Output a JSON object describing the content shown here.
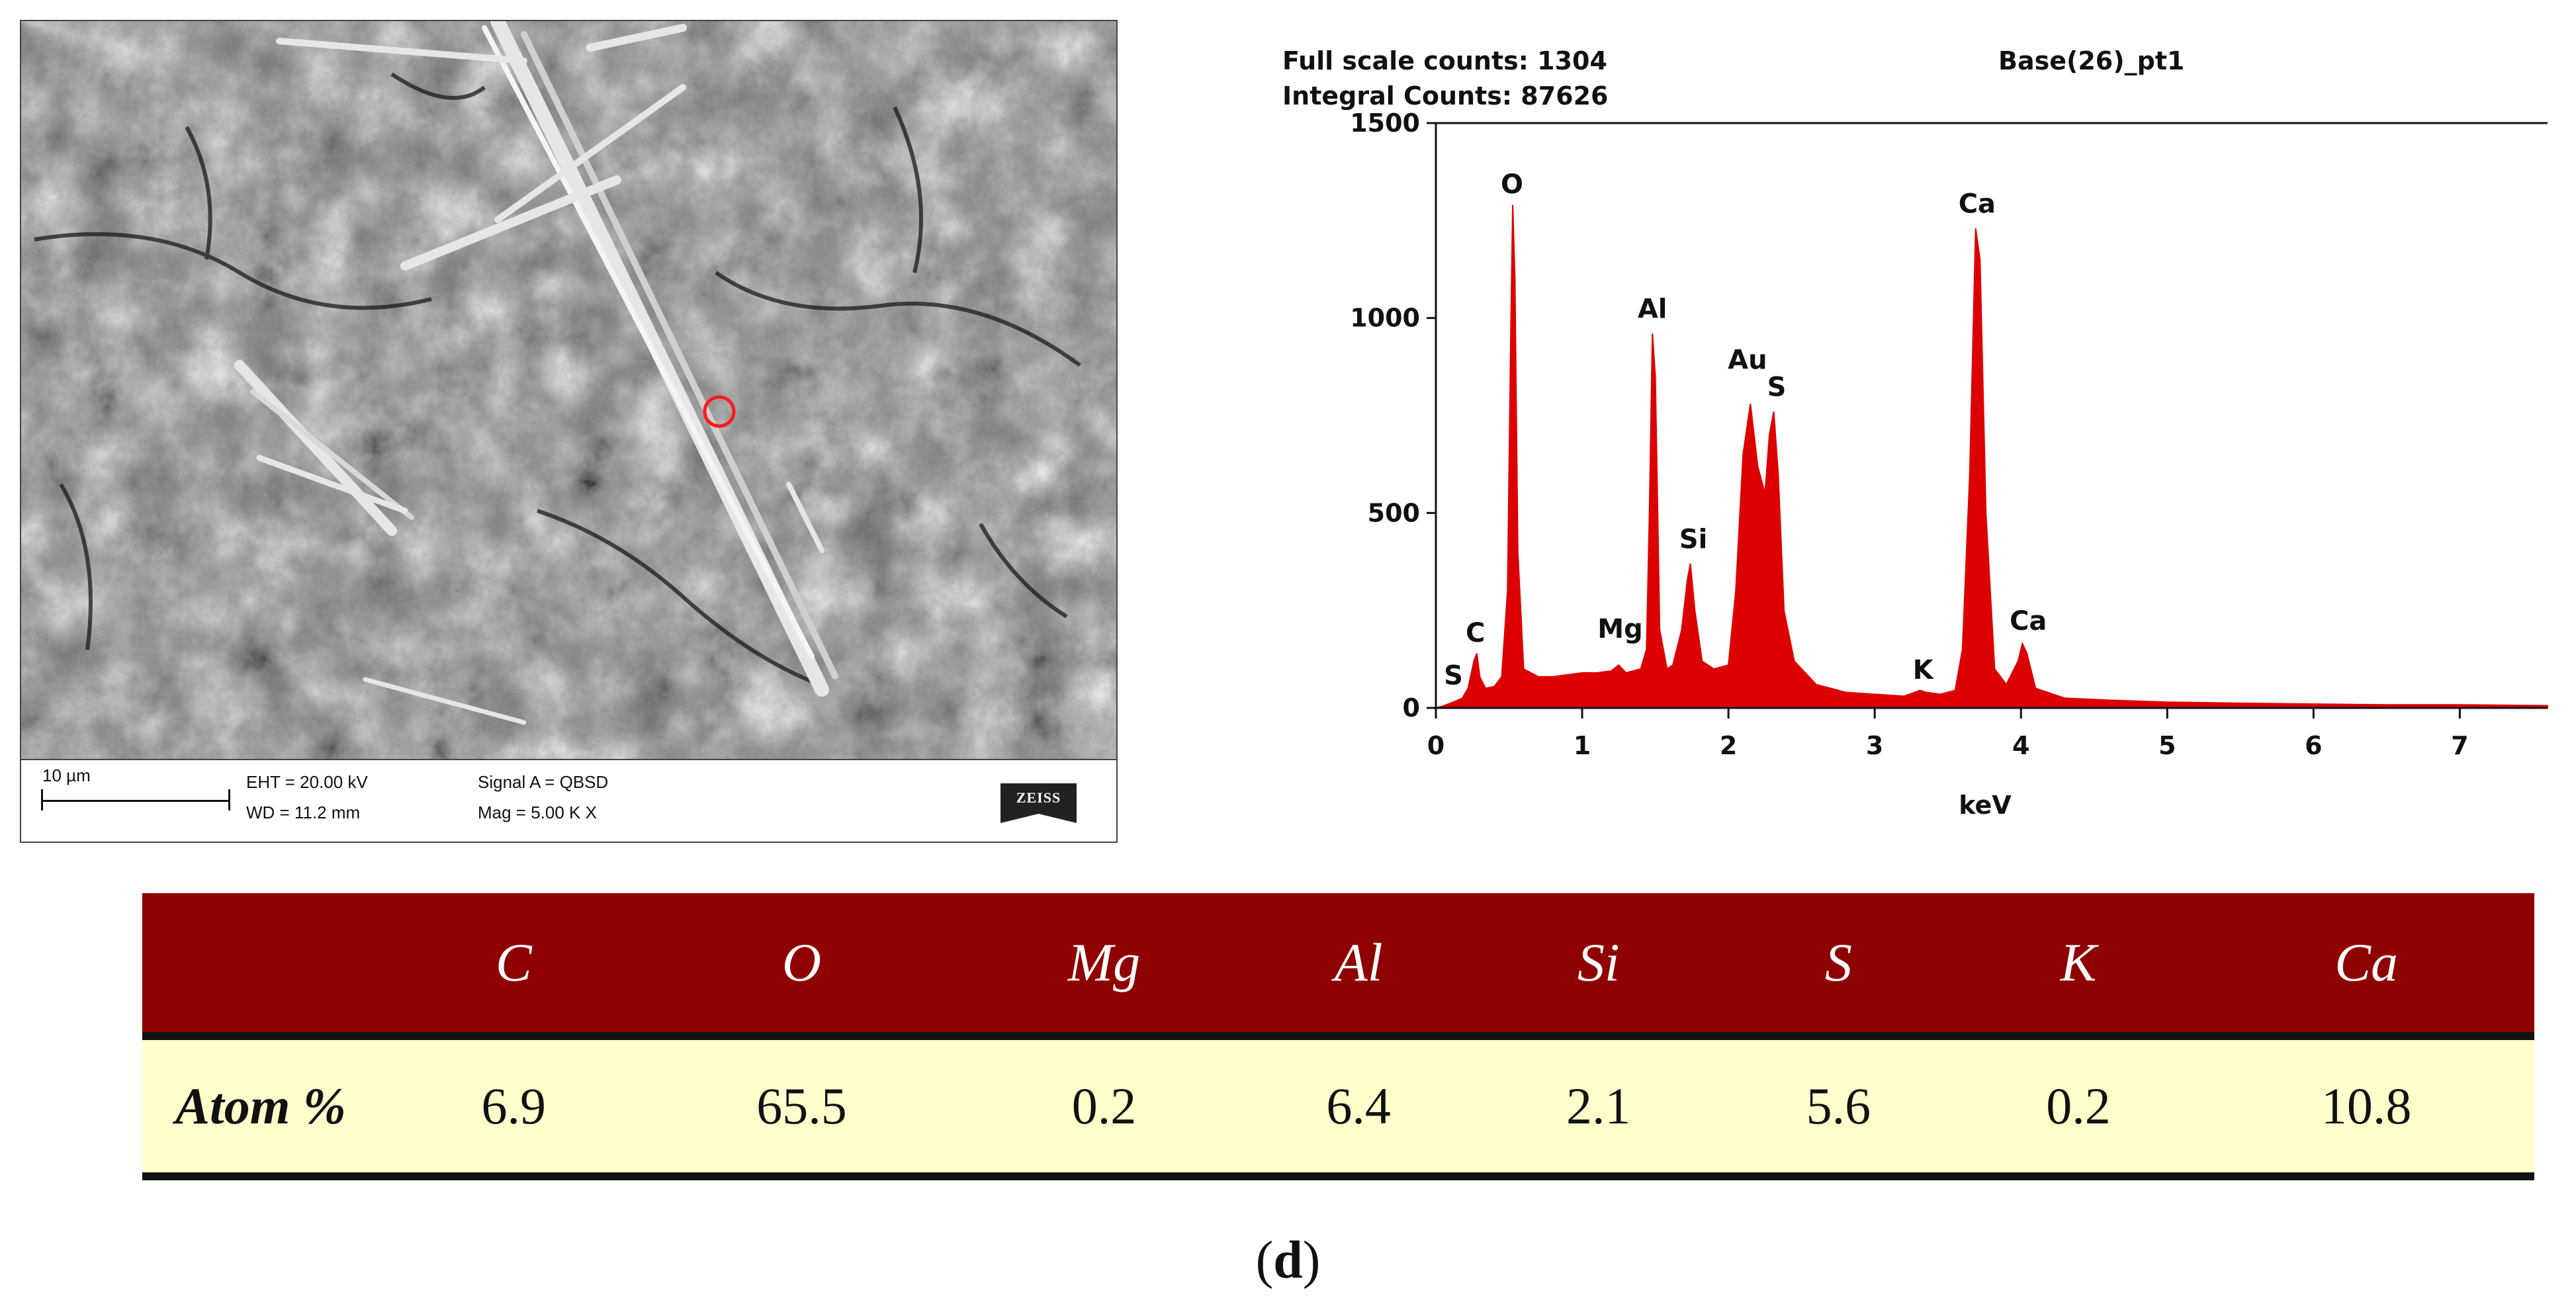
{
  "sem": {
    "scale_label": "10 µm",
    "eht": "EHT = 20.00 kV",
    "wd": "WD = 11.2 mm",
    "signal": "Signal A = QBSD",
    "mag": "Mag =  5.00 K X",
    "logo": "ZEISS"
  },
  "chart_data": {
    "type": "line",
    "header_left_1": "Full scale counts: 1304",
    "header_left_2": "Integral Counts: 87626",
    "header_right": "Base(26)_pt1",
    "xlabel": "keV",
    "ylabel": "",
    "xlim": [
      0,
      7.6
    ],
    "ylim": [
      0,
      1500
    ],
    "x_ticks": [
      "0",
      "1",
      "2",
      "3",
      "4",
      "5",
      "6",
      "7"
    ],
    "y_ticks": [
      "0",
      "500",
      "1000",
      "1500"
    ],
    "color": "#dd0000",
    "grid": false,
    "series": [
      {
        "points": [
          [
            0.0,
            0
          ],
          [
            0.05,
            5
          ],
          [
            0.12,
            15
          ],
          [
            0.18,
            25
          ],
          [
            0.22,
            50
          ],
          [
            0.26,
            120
          ],
          [
            0.28,
            140
          ],
          [
            0.3,
            80
          ],
          [
            0.34,
            50
          ],
          [
            0.4,
            55
          ],
          [
            0.45,
            80
          ],
          [
            0.49,
            300
          ],
          [
            0.51,
            900
          ],
          [
            0.525,
            1290
          ],
          [
            0.54,
            1100
          ],
          [
            0.56,
            400
          ],
          [
            0.6,
            100
          ],
          [
            0.7,
            80
          ],
          [
            0.8,
            80
          ],
          [
            0.9,
            85
          ],
          [
            1.0,
            90
          ],
          [
            1.1,
            90
          ],
          [
            1.2,
            95
          ],
          [
            1.25,
            110
          ],
          [
            1.3,
            90
          ],
          [
            1.4,
            100
          ],
          [
            1.44,
            150
          ],
          [
            1.46,
            500
          ],
          [
            1.48,
            960
          ],
          [
            1.5,
            850
          ],
          [
            1.53,
            200
          ],
          [
            1.58,
            100
          ],
          [
            1.62,
            110
          ],
          [
            1.68,
            200
          ],
          [
            1.72,
            330
          ],
          [
            1.74,
            370
          ],
          [
            1.77,
            250
          ],
          [
            1.82,
            120
          ],
          [
            1.9,
            100
          ],
          [
            2.0,
            110
          ],
          [
            2.05,
            300
          ],
          [
            2.1,
            650
          ],
          [
            2.15,
            780
          ],
          [
            2.2,
            620
          ],
          [
            2.25,
            550
          ],
          [
            2.28,
            700
          ],
          [
            2.31,
            760
          ],
          [
            2.34,
            600
          ],
          [
            2.38,
            250
          ],
          [
            2.45,
            120
          ],
          [
            2.6,
            60
          ],
          [
            2.8,
            40
          ],
          [
            3.0,
            35
          ],
          [
            3.2,
            30
          ],
          [
            3.31,
            45
          ],
          [
            3.35,
            40
          ],
          [
            3.45,
            35
          ],
          [
            3.55,
            45
          ],
          [
            3.6,
            150
          ],
          [
            3.65,
            600
          ],
          [
            3.69,
            1230
          ],
          [
            3.72,
            1150
          ],
          [
            3.76,
            500
          ],
          [
            3.82,
            100
          ],
          [
            3.9,
            60
          ],
          [
            3.98,
            120
          ],
          [
            4.01,
            165
          ],
          [
            4.04,
            140
          ],
          [
            4.1,
            50
          ],
          [
            4.3,
            25
          ],
          [
            4.6,
            20
          ],
          [
            5.0,
            15
          ],
          [
            5.5,
            12
          ],
          [
            6.0,
            10
          ],
          [
            6.5,
            8
          ],
          [
            7.0,
            8
          ],
          [
            7.6,
            6
          ]
        ]
      }
    ],
    "annotations": [
      {
        "label": "S",
        "x": 0.12,
        "y": 60
      },
      {
        "label": "C",
        "x": 0.27,
        "y": 170
      },
      {
        "label": "O",
        "x": 0.52,
        "y": 1320
      },
      {
        "label": "Mg",
        "x": 1.26,
        "y": 180
      },
      {
        "label": "Al",
        "x": 1.48,
        "y": 1000
      },
      {
        "label": "Si",
        "x": 1.76,
        "y": 410
      },
      {
        "label": "Au",
        "x": 2.13,
        "y": 870
      },
      {
        "label": "S",
        "x": 2.33,
        "y": 800
      },
      {
        "label": "K",
        "x": 3.33,
        "y": 75
      },
      {
        "label": "Ca",
        "x": 3.7,
        "y": 1270
      },
      {
        "label": "Ca",
        "x": 4.05,
        "y": 200
      }
    ]
  },
  "table": {
    "headers": [
      "C",
      "O",
      "Mg",
      "Al",
      "Si",
      "S",
      "K",
      "Ca"
    ],
    "row_label": "Atom %",
    "values": [
      "6.9",
      "65.5",
      "0.2",
      "6.4",
      "2.1",
      "5.6",
      "0.2",
      "10.8"
    ],
    "header_bg": "#8f0000",
    "row_bg": "#ffffcc"
  },
  "caption": {
    "open": "(",
    "letter": "d",
    "close": ")"
  }
}
